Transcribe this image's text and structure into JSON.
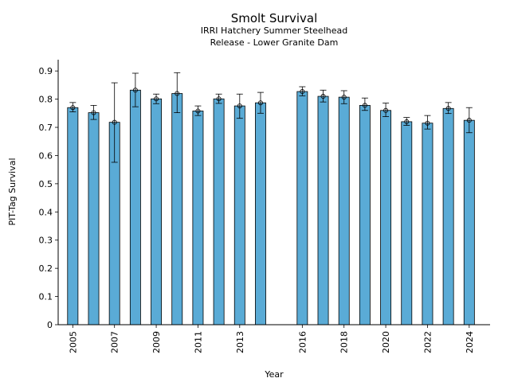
{
  "chart_data": {
    "type": "bar",
    "title": "Smolt Survival",
    "subtitle_lines": [
      "IRRI Hatchery Summer Steelhead",
      "Release - Lower Granite Dam"
    ],
    "xlabel": "Year",
    "ylabel": "PIT-Tag Survival",
    "ylim": [
      0,
      0.94
    ],
    "yticks": [
      0,
      0.1,
      0.2,
      0.3,
      0.4,
      0.5,
      0.6,
      0.7,
      0.8,
      0.9
    ],
    "xlim": [
      2004.3,
      2025.0
    ],
    "xtick_labels": [
      "2005",
      "2007",
      "2009",
      "2011",
      "2013",
      "2016",
      "2018",
      "2020",
      "2022",
      "2024"
    ],
    "grid": false,
    "bar_color": "#5aabd6",
    "edge_color": "#000000",
    "points": [
      {
        "year": 2005,
        "value": 0.77,
        "err_low": 0.755,
        "err_high": 0.788
      },
      {
        "year": 2006,
        "value": 0.752,
        "err_low": 0.728,
        "err_high": 0.778
      },
      {
        "year": 2007,
        "value": 0.718,
        "err_low": 0.576,
        "err_high": 0.858
      },
      {
        "year": 2008,
        "value": 0.832,
        "err_low": 0.773,
        "err_high": 0.892
      },
      {
        "year": 2009,
        "value": 0.801,
        "err_low": 0.784,
        "err_high": 0.818
      },
      {
        "year": 2010,
        "value": 0.82,
        "err_low": 0.752,
        "err_high": 0.894
      },
      {
        "year": 2011,
        "value": 0.758,
        "err_low": 0.742,
        "err_high": 0.776
      },
      {
        "year": 2012,
        "value": 0.801,
        "err_low": 0.785,
        "err_high": 0.818
      },
      {
        "year": 2013,
        "value": 0.776,
        "err_low": 0.732,
        "err_high": 0.818
      },
      {
        "year": 2014,
        "value": 0.787,
        "err_low": 0.75,
        "err_high": 0.824
      },
      {
        "year": 2016,
        "value": 0.827,
        "err_low": 0.812,
        "err_high": 0.844
      },
      {
        "year": 2017,
        "value": 0.81,
        "err_low": 0.79,
        "err_high": 0.832
      },
      {
        "year": 2018,
        "value": 0.807,
        "err_low": 0.784,
        "err_high": 0.83
      },
      {
        "year": 2019,
        "value": 0.778,
        "err_low": 0.76,
        "err_high": 0.804
      },
      {
        "year": 2020,
        "value": 0.76,
        "err_low": 0.738,
        "err_high": 0.786
      },
      {
        "year": 2021,
        "value": 0.72,
        "err_low": 0.707,
        "err_high": 0.735
      },
      {
        "year": 2022,
        "value": 0.715,
        "err_low": 0.694,
        "err_high": 0.742
      },
      {
        "year": 2023,
        "value": 0.767,
        "err_low": 0.749,
        "err_high": 0.788
      },
      {
        "year": 2024,
        "value": 0.725,
        "err_low": 0.681,
        "err_high": 0.77
      }
    ]
  }
}
